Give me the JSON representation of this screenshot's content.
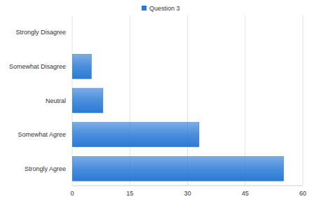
{
  "chart_data": {
    "type": "bar",
    "orientation": "horizontal",
    "categories": [
      "Strongly Disagree",
      "Somewhat Disagree",
      "Neutral",
      "Somewhat Agree",
      "Strongly Agree"
    ],
    "series": [
      {
        "name": "Question 3",
        "color": "#2a7ad6",
        "values": [
          0,
          5,
          8,
          33,
          55
        ]
      }
    ],
    "xlim": [
      0,
      60
    ],
    "xticks": [
      0,
      15,
      30,
      45,
      60
    ],
    "grid": true,
    "legend": "top"
  }
}
